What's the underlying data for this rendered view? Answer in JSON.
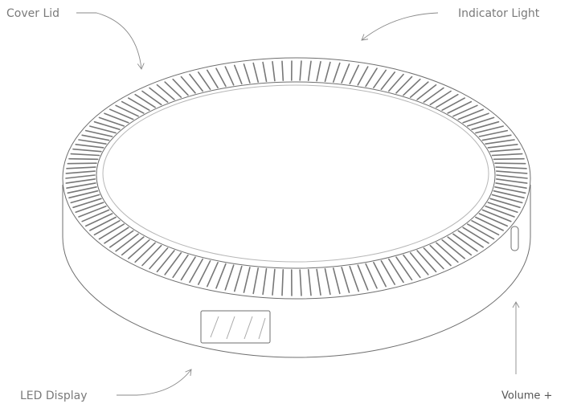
{
  "labels": {
    "cover_lid": "Cover Lid",
    "indicator_light": "Indicator Light",
    "led_display": "LED Display",
    "volume_up": "Volume +"
  }
}
